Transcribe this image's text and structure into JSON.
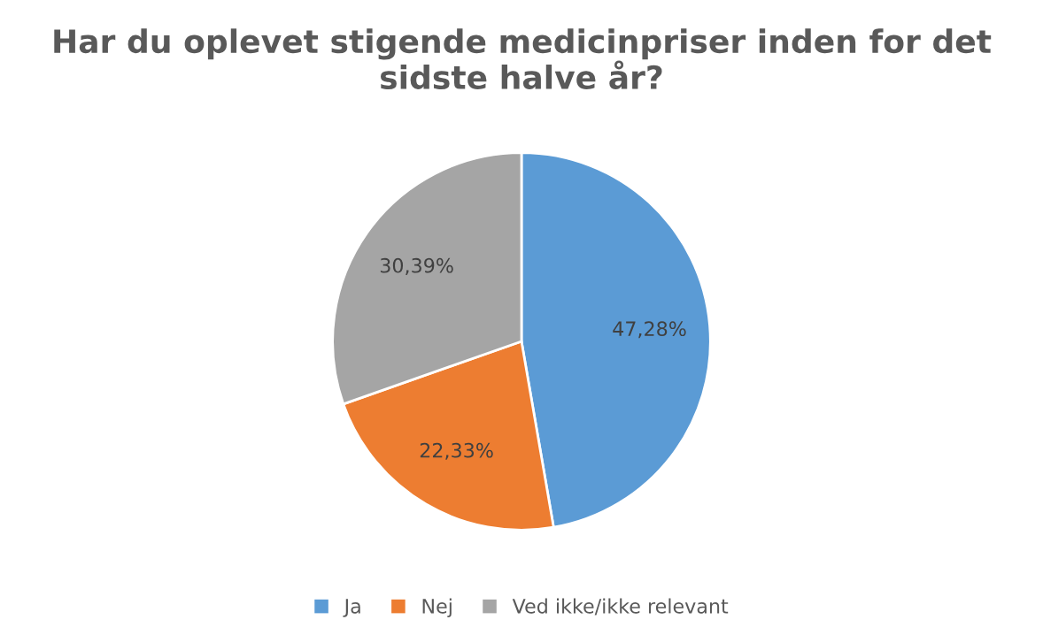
{
  "chart_data": {
    "type": "pie",
    "title": "Har du oplevet stigende medicinpriser inden for det sidste halve år?",
    "categories": [
      "Ja",
      "Nej",
      "Ved ikke/ikke relevant"
    ],
    "values": [
      47.28,
      22.33,
      30.39
    ],
    "colors": [
      "#5b9bd5",
      "#ed7d31",
      "#a5a5a5"
    ],
    "value_labels": [
      "47,28%",
      "22,33%",
      "30,39%"
    ],
    "legend": "bottom"
  }
}
